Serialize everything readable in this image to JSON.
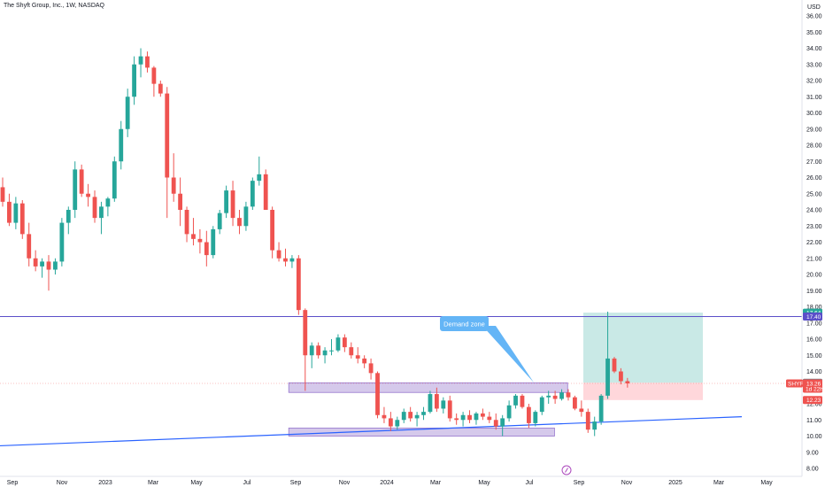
{
  "header": {
    "title": "The Shyft Group, Inc., 1W, NASDAQ"
  },
  "price_axis": {
    "currency": "USD"
  },
  "colors": {
    "up": "#26a69a",
    "down": "#ef5350",
    "resistance_line": "#5b4fc9",
    "trend_line": "#2962ff",
    "zone_fill": "#b39ddb",
    "zone_border": "#9575cd",
    "target_fill": "#b2dfdb",
    "stop_fill": "#ffcdd2",
    "callout_bg": "#64b5f6",
    "tag_green": "#26a69a",
    "tag_purple": "#5b4fc9",
    "tag_red": "#ef5350",
    "tag_gray": "#787b86"
  },
  "annotations": {
    "demand_zone_label": "Demand zone",
    "price_tags": [
      {
        "label": "17.64",
        "kind": "green"
      },
      {
        "label": "17.40",
        "kind": "purple"
      },
      {
        "label": "13.30",
        "kind": "gray"
      },
      {
        "label": "12.23",
        "kind": "red"
      }
    ],
    "current_price_tag": {
      "symbol": "SHYF",
      "price": "13.26",
      "countdown": "1d 22h"
    }
  },
  "chart_data": {
    "type": "candlestick",
    "title": "The Shyft Group, Inc., 1W, NASDAQ",
    "interval": "1W",
    "x_labels": [
      "Sep",
      "Nov",
      "2023",
      "Mar",
      "May",
      "Jul",
      "Sep",
      "Nov",
      "2024",
      "Mar",
      "May",
      "Jul",
      "Sep",
      "Nov",
      "2025",
      "Mar",
      "May"
    ],
    "y_range": [
      7.5,
      36.5
    ],
    "y_ticks": [
      8,
      9,
      10,
      11,
      12,
      13,
      14,
      15,
      16,
      17,
      18,
      19,
      20,
      21,
      22,
      23,
      24,
      25,
      26,
      27,
      28,
      29,
      30,
      31,
      32,
      33,
      34,
      35,
      36
    ],
    "candles": [
      [
        25.4,
        26.0,
        24.2,
        24.5
      ],
      [
        24.5,
        25.0,
        23.0,
        23.2
      ],
      [
        23.2,
        24.8,
        22.8,
        24.4
      ],
      [
        24.4,
        24.6,
        22.2,
        22.5
      ],
      [
        22.5,
        23.2,
        20.5,
        21.0
      ],
      [
        21.0,
        21.5,
        20.2,
        20.5
      ],
      [
        20.5,
        21.0,
        19.8,
        20.8
      ],
      [
        20.8,
        21.2,
        19.0,
        20.3
      ],
      [
        20.3,
        21.0,
        20.0,
        20.8
      ],
      [
        20.8,
        23.5,
        20.5,
        23.2
      ],
      [
        23.2,
        24.2,
        22.5,
        24.0
      ],
      [
        24.0,
        27.0,
        23.5,
        26.5
      ],
      [
        26.5,
        26.8,
        24.8,
        25.0
      ],
      [
        25.0,
        25.6,
        24.2,
        24.8
      ],
      [
        24.8,
        25.2,
        23.2,
        23.5
      ],
      [
        23.5,
        24.5,
        22.5,
        24.2
      ],
      [
        24.2,
        24.8,
        23.6,
        24.7
      ],
      [
        24.7,
        27.3,
        24.5,
        27.0
      ],
      [
        27.0,
        29.5,
        26.5,
        29.0
      ],
      [
        29.0,
        31.5,
        28.5,
        31.0
      ],
      [
        31.0,
        33.5,
        30.5,
        33.0
      ],
      [
        33.0,
        34.0,
        32.2,
        33.5
      ],
      [
        33.5,
        33.8,
        32.5,
        32.8
      ],
      [
        32.8,
        32.9,
        31.0,
        31.8
      ],
      [
        31.8,
        32.0,
        31.0,
        31.2
      ],
      [
        31.2,
        31.6,
        23.5,
        26.0
      ],
      [
        26.0,
        27.5,
        24.5,
        25.0
      ],
      [
        25.0,
        26.0,
        23.0,
        24.0
      ],
      [
        24.0,
        24.2,
        22.0,
        22.5
      ],
      [
        22.5,
        23.5,
        21.8,
        22.2
      ],
      [
        22.2,
        22.8,
        21.3,
        22.0
      ],
      [
        22.0,
        22.7,
        20.5,
        21.2
      ],
      [
        21.2,
        23.0,
        21.0,
        22.8
      ],
      [
        22.8,
        24.0,
        22.5,
        23.8
      ],
      [
        23.8,
        25.5,
        23.5,
        25.2
      ],
      [
        25.2,
        25.8,
        23.0,
        23.5
      ],
      [
        23.5,
        24.0,
        22.5,
        23.0
      ],
      [
        23.0,
        24.5,
        22.7,
        24.2
      ],
      [
        24.2,
        26.0,
        24.0,
        25.8
      ],
      [
        25.8,
        27.3,
        25.5,
        26.2
      ],
      [
        26.2,
        26.5,
        24.0,
        24.0
      ],
      [
        24.0,
        24.2,
        21.0,
        21.5
      ],
      [
        21.5,
        22.0,
        20.8,
        21.0
      ],
      [
        21.0,
        21.6,
        20.5,
        20.8
      ],
      [
        20.8,
        21.2,
        20.4,
        21.0
      ],
      [
        21.0,
        21.2,
        17.5,
        17.8
      ],
      [
        17.8,
        17.9,
        12.8,
        15.0
      ],
      [
        15.0,
        15.8,
        14.2,
        15.6
      ],
      [
        15.6,
        15.8,
        14.8,
        15.0
      ],
      [
        15.0,
        15.5,
        14.5,
        15.3
      ],
      [
        15.3,
        16.0,
        15.0,
        15.3
      ],
      [
        15.3,
        16.3,
        15.2,
        16.1
      ],
      [
        16.1,
        16.3,
        15.2,
        15.5
      ],
      [
        15.5,
        15.8,
        14.8,
        15.0
      ],
      [
        15.0,
        15.5,
        14.5,
        14.8
      ],
      [
        14.8,
        15.0,
        14.2,
        14.5
      ],
      [
        14.5,
        14.8,
        13.5,
        13.9
      ],
      [
        13.9,
        14.0,
        11.1,
        11.3
      ],
      [
        11.3,
        11.8,
        10.8,
        11.1
      ],
      [
        11.1,
        11.5,
        10.3,
        10.6
      ],
      [
        10.6,
        11.2,
        10.4,
        11.0
      ],
      [
        11.0,
        11.7,
        10.8,
        11.5
      ],
      [
        11.5,
        11.8,
        10.9,
        11.1
      ],
      [
        11.1,
        11.5,
        10.6,
        11.3
      ],
      [
        11.3,
        11.8,
        11.0,
        11.5
      ],
      [
        11.5,
        12.8,
        11.4,
        12.6
      ],
      [
        12.6,
        13.0,
        11.5,
        11.7
      ],
      [
        11.7,
        12.4,
        11.4,
        12.2
      ],
      [
        12.2,
        12.5,
        10.9,
        11.1
      ],
      [
        11.1,
        11.4,
        10.7,
        11.0
      ],
      [
        11.0,
        11.5,
        10.6,
        11.3
      ],
      [
        11.3,
        11.6,
        10.8,
        11.0
      ],
      [
        11.0,
        11.5,
        10.7,
        11.4
      ],
      [
        11.4,
        11.7,
        11.0,
        11.2
      ],
      [
        11.2,
        11.5,
        10.8,
        11.0
      ],
      [
        11.0,
        11.4,
        10.4,
        10.6
      ],
      [
        10.6,
        11.3,
        10.0,
        11.1
      ],
      [
        11.1,
        12.2,
        10.9,
        11.9
      ],
      [
        11.9,
        12.6,
        11.7,
        12.5
      ],
      [
        12.5,
        12.6,
        11.7,
        11.8
      ],
      [
        11.8,
        12.0,
        10.5,
        10.8
      ],
      [
        10.8,
        11.6,
        10.6,
        11.5
      ],
      [
        11.5,
        12.5,
        11.3,
        12.4
      ],
      [
        12.4,
        12.8,
        12.0,
        12.5
      ],
      [
        12.5,
        12.8,
        12.0,
        12.3
      ],
      [
        12.3,
        12.9,
        12.2,
        12.7
      ],
      [
        12.7,
        12.9,
        12.2,
        12.4
      ],
      [
        12.4,
        12.5,
        11.6,
        11.7
      ],
      [
        11.7,
        12.2,
        11.2,
        11.5
      ],
      [
        11.5,
        11.7,
        10.2,
        10.4
      ],
      [
        10.4,
        11.2,
        10.0,
        10.9
      ],
      [
        10.9,
        12.6,
        10.7,
        12.5
      ],
      [
        12.5,
        17.7,
        12.3,
        14.8
      ],
      [
        14.8,
        14.9,
        13.9,
        14.0
      ],
      [
        14.0,
        14.2,
        13.2,
        13.4
      ],
      [
        13.4,
        13.6,
        13.0,
        13.26
      ]
    ],
    "horizontal_levels": [
      17.4
    ],
    "zones": [
      {
        "name": "upper demand band",
        "x_from_bar": 43.5,
        "x_to_bar": 85.5,
        "low": 12.7,
        "high": 13.3
      },
      {
        "name": "lower demand band",
        "x_from_bar": 43.5,
        "x_to_bar": 83.5,
        "low": 10.0,
        "high": 10.5
      }
    ],
    "trend_line": {
      "y_start": 9.4,
      "y_end": 11.2
    },
    "position": {
      "entry": 13.3,
      "target": 17.64,
      "stop": 12.23
    }
  }
}
